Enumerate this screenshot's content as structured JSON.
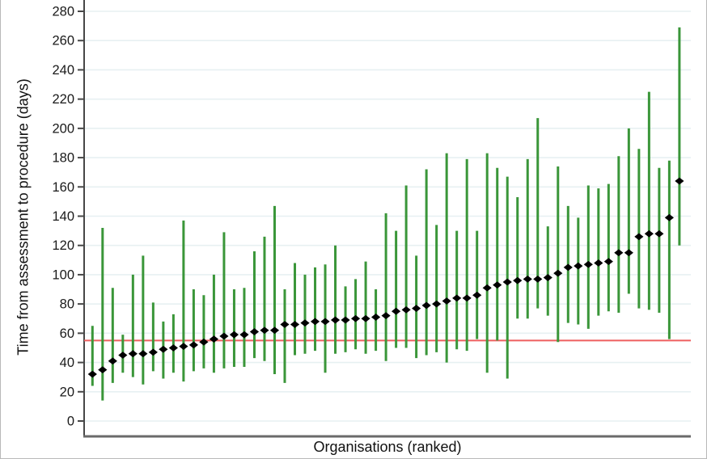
{
  "chart_data": {
    "type": "scatter",
    "subtype": "caterpillar-plot-with-error-bars",
    "title": "",
    "xlabel": "Organisations (ranked)",
    "ylabel": "Time from assessment to procedure (days)",
    "ylim": [
      -11,
      288
    ],
    "yticks": [
      0,
      20,
      40,
      60,
      80,
      100,
      120,
      140,
      160,
      180,
      200,
      220,
      240,
      260,
      280
    ],
    "xticks": [],
    "grid": true,
    "legend_position": "none",
    "reference_line": {
      "value": 55,
      "color": "#ee5f5f"
    },
    "series": [
      {
        "name": "organisation point estimate",
        "marker": "diamond",
        "color": "#000000"
      },
      {
        "name": "confidence interval",
        "marker": "vertical-line",
        "color": "#3a9639"
      }
    ],
    "n_organisations": 59,
    "points": [
      {
        "rank": 1,
        "value": 32,
        "lo": 24,
        "hi": 65
      },
      {
        "rank": 2,
        "value": 35,
        "lo": 14,
        "hi": 132
      },
      {
        "rank": 3,
        "value": 41,
        "lo": 26,
        "hi": 91
      },
      {
        "rank": 4,
        "value": 45,
        "lo": 33,
        "hi": 59
      },
      {
        "rank": 5,
        "value": 46,
        "lo": 30,
        "hi": 100
      },
      {
        "rank": 6,
        "value": 46,
        "lo": 25,
        "hi": 113
      },
      {
        "rank": 7,
        "value": 47,
        "lo": 34,
        "hi": 81
      },
      {
        "rank": 8,
        "value": 49,
        "lo": 29,
        "hi": 68
      },
      {
        "rank": 9,
        "value": 50,
        "lo": 33,
        "hi": 73
      },
      {
        "rank": 10,
        "value": 51,
        "lo": 27,
        "hi": 137
      },
      {
        "rank": 11,
        "value": 52,
        "lo": 34,
        "hi": 90
      },
      {
        "rank": 12,
        "value": 54,
        "lo": 36,
        "hi": 86
      },
      {
        "rank": 13,
        "value": 56,
        "lo": 33,
        "hi": 100
      },
      {
        "rank": 14,
        "value": 58,
        "lo": 36,
        "hi": 129
      },
      {
        "rank": 15,
        "value": 59,
        "lo": 37,
        "hi": 90
      },
      {
        "rank": 16,
        "value": 59,
        "lo": 37,
        "hi": 91
      },
      {
        "rank": 17,
        "value": 61,
        "lo": 43,
        "hi": 116
      },
      {
        "rank": 18,
        "value": 62,
        "lo": 41,
        "hi": 126
      },
      {
        "rank": 19,
        "value": 62,
        "lo": 32,
        "hi": 147
      },
      {
        "rank": 20,
        "value": 66,
        "lo": 26,
        "hi": 90
      },
      {
        "rank": 21,
        "value": 66,
        "lo": 45,
        "hi": 108
      },
      {
        "rank": 22,
        "value": 67,
        "lo": 46,
        "hi": 100
      },
      {
        "rank": 23,
        "value": 68,
        "lo": 48,
        "hi": 105
      },
      {
        "rank": 24,
        "value": 68,
        "lo": 33,
        "hi": 107
      },
      {
        "rank": 25,
        "value": 69,
        "lo": 46,
        "hi": 120
      },
      {
        "rank": 26,
        "value": 69,
        "lo": 47,
        "hi": 92
      },
      {
        "rank": 27,
        "value": 70,
        "lo": 49,
        "hi": 97
      },
      {
        "rank": 28,
        "value": 70,
        "lo": 46,
        "hi": 109
      },
      {
        "rank": 29,
        "value": 71,
        "lo": 48,
        "hi": 90
      },
      {
        "rank": 30,
        "value": 72,
        "lo": 41,
        "hi": 142
      },
      {
        "rank": 31,
        "value": 75,
        "lo": 50,
        "hi": 130
      },
      {
        "rank": 32,
        "value": 76,
        "lo": 50,
        "hi": 161
      },
      {
        "rank": 33,
        "value": 77,
        "lo": 43,
        "hi": 113
      },
      {
        "rank": 34,
        "value": 79,
        "lo": 45,
        "hi": 172
      },
      {
        "rank": 35,
        "value": 80,
        "lo": 47,
        "hi": 134
      },
      {
        "rank": 36,
        "value": 82,
        "lo": 40,
        "hi": 183
      },
      {
        "rank": 37,
        "value": 84,
        "lo": 49,
        "hi": 130
      },
      {
        "rank": 38,
        "value": 84,
        "lo": 48,
        "hi": 179
      },
      {
        "rank": 39,
        "value": 86,
        "lo": 56,
        "hi": 130
      },
      {
        "rank": 40,
        "value": 91,
        "lo": 33,
        "hi": 183
      },
      {
        "rank": 41,
        "value": 93,
        "lo": 55,
        "hi": 173
      },
      {
        "rank": 42,
        "value": 95,
        "lo": 29,
        "hi": 167
      },
      {
        "rank": 43,
        "value": 96,
        "lo": 70,
        "hi": 153
      },
      {
        "rank": 44,
        "value": 97,
        "lo": 70,
        "hi": 179
      },
      {
        "rank": 45,
        "value": 97,
        "lo": 77,
        "hi": 207
      },
      {
        "rank": 46,
        "value": 98,
        "lo": 72,
        "hi": 133
      },
      {
        "rank": 47,
        "value": 101,
        "lo": 54,
        "hi": 174
      },
      {
        "rank": 48,
        "value": 105,
        "lo": 67,
        "hi": 147
      },
      {
        "rank": 49,
        "value": 106,
        "lo": 66,
        "hi": 139
      },
      {
        "rank": 50,
        "value": 107,
        "lo": 63,
        "hi": 161
      },
      {
        "rank": 51,
        "value": 108,
        "lo": 72,
        "hi": 159
      },
      {
        "rank": 52,
        "value": 109,
        "lo": 75,
        "hi": 162
      },
      {
        "rank": 53,
        "value": 115,
        "lo": 74,
        "hi": 181
      },
      {
        "rank": 54,
        "value": 115,
        "lo": 87,
        "hi": 200
      },
      {
        "rank": 55,
        "value": 126,
        "lo": 77,
        "hi": 186
      },
      {
        "rank": 56,
        "value": 128,
        "lo": 76,
        "hi": 225
      },
      {
        "rank": 57,
        "value": 128,
        "lo": 74,
        "hi": 173
      },
      {
        "rank": 58,
        "value": 139,
        "lo": 56,
        "hi": 178
      },
      {
        "rank": 59,
        "value": 164,
        "lo": 120,
        "hi": 269
      }
    ]
  },
  "colors": {
    "ci_green": "#3a9639",
    "reference_red": "#ee5f5f",
    "gridline": "#e7f0f2",
    "y_axis_line": "#474747",
    "x_axis_line": "#6a6a6a",
    "tick_label": "#1a1a1a",
    "marker_black": "#000000",
    "background": "#ffffff"
  }
}
